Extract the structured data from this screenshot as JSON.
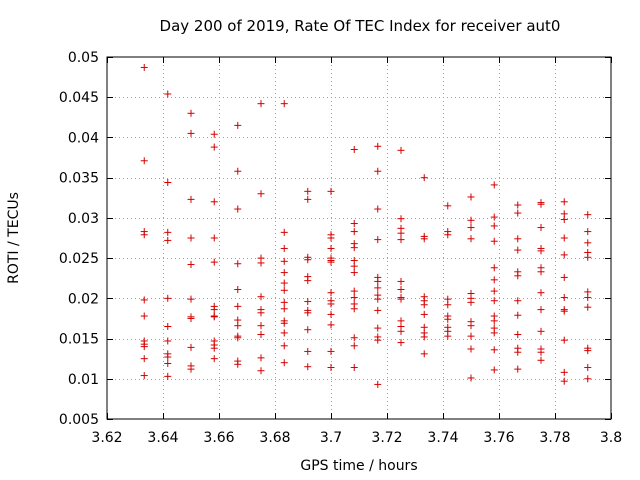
{
  "chart_data": {
    "type": "scatter",
    "title": "Day 200 of 2019, Rate Of TEC Index for receiver aut0",
    "xlabel": "GPS time / hours",
    "ylabel": "ROTI / TECUs",
    "xlim": [
      3.62,
      3.8
    ],
    "ylim": [
      0.005,
      0.05
    ],
    "xticks": [
      3.62,
      3.64,
      3.66,
      3.68,
      3.7,
      3.72,
      3.74,
      3.76,
      3.78,
      3.8
    ],
    "xtick_labels": [
      "3.62",
      "3.64",
      "3.66",
      "3.68",
      "3.7",
      "3.72",
      "3.74",
      "3.76",
      "3.78",
      "3.8"
    ],
    "yticks": [
      0.005,
      0.01,
      0.015,
      0.02,
      0.025,
      0.03,
      0.035,
      0.04,
      0.045,
      0.05
    ],
    "ytick_labels": [
      "0.005",
      "0.01",
      "0.015",
      "0.02",
      "0.025",
      "0.03",
      "0.035",
      "0.04",
      "0.045",
      "0.05"
    ],
    "grid": true,
    "marker": "+",
    "color": "#d40000",
    "series": [
      {
        "x": 3.6333,
        "y": [
          0.0487,
          0.0371,
          0.0283,
          0.0279,
          0.0198,
          0.0178,
          0.0147,
          0.0143,
          0.014,
          0.0125,
          0.0104
        ]
      },
      {
        "x": 3.6417,
        "y": [
          0.0454,
          0.0344,
          0.0282,
          0.0272,
          0.02,
          0.0165,
          0.0147,
          0.0131,
          0.0127,
          0.0119,
          0.0103
        ]
      },
      {
        "x": 3.65,
        "y": [
          0.043,
          0.0405,
          0.0323,
          0.0275,
          0.0242,
          0.0199,
          0.0177,
          0.0175,
          0.0139,
          0.0116,
          0.0112
        ]
      },
      {
        "x": 3.6583,
        "y": [
          0.0404,
          0.0388,
          0.032,
          0.0275,
          0.0245,
          0.019,
          0.0186,
          0.0178,
          0.0177,
          0.0147,
          0.0142,
          0.0138,
          0.0125
        ]
      },
      {
        "x": 3.6667,
        "y": [
          0.0415,
          0.0358,
          0.0311,
          0.0243,
          0.0211,
          0.019,
          0.0173,
          0.0166,
          0.0153,
          0.0151,
          0.0122,
          0.0118
        ]
      },
      {
        "x": 3.675,
        "y": [
          0.0442,
          0.033,
          0.025,
          0.0244,
          0.0202,
          0.0186,
          0.0182,
          0.0166,
          0.0155,
          0.0126,
          0.011
        ]
      },
      {
        "x": 3.6833,
        "y": [
          0.0442,
          0.0282,
          0.0262,
          0.0246,
          0.0232,
          0.0219,
          0.021,
          0.0195,
          0.0187,
          0.0172,
          0.0169,
          0.0157,
          0.0141,
          0.012
        ]
      },
      {
        "x": 3.6917,
        "y": [
          0.0333,
          0.0323,
          0.0251,
          0.0248,
          0.0227,
          0.0222,
          0.0196,
          0.0185,
          0.0182,
          0.0161,
          0.0134,
          0.0115
        ]
      },
      {
        "x": 3.7,
        "y": [
          0.0333,
          0.0279,
          0.0275,
          0.0262,
          0.025,
          0.0247,
          0.0245,
          0.0207,
          0.0197,
          0.0193,
          0.018,
          0.0167,
          0.0134,
          0.0114
        ]
      },
      {
        "x": 3.7083,
        "y": [
          0.0385,
          0.0293,
          0.0283,
          0.0268,
          0.0263,
          0.0247,
          0.024,
          0.0232,
          0.0209,
          0.0201,
          0.0193,
          0.0187,
          0.0151,
          0.0141,
          0.0114
        ]
      },
      {
        "x": 3.7167,
        "y": [
          0.0389,
          0.0358,
          0.0311,
          0.0273,
          0.0226,
          0.0221,
          0.0213,
          0.0204,
          0.0199,
          0.0185,
          0.0163,
          0.0152,
          0.0148,
          0.0093
        ]
      },
      {
        "x": 3.725,
        "y": [
          0.0384,
          0.0299,
          0.0287,
          0.0281,
          0.0273,
          0.0221,
          0.0211,
          0.0201,
          0.0199,
          0.0172,
          0.0165,
          0.0159,
          0.0145
        ]
      },
      {
        "x": 3.7333,
        "y": [
          0.035,
          0.0277,
          0.0274,
          0.0202,
          0.0197,
          0.0192,
          0.018,
          0.0164,
          0.0157,
          0.0152,
          0.0131
        ]
      },
      {
        "x": 3.7417,
        "y": [
          0.0315,
          0.0283,
          0.0279,
          0.0199,
          0.0192,
          0.0178,
          0.0174,
          0.0164,
          0.0159,
          0.0153
        ]
      },
      {
        "x": 3.75,
        "y": [
          0.0326,
          0.0297,
          0.0288,
          0.0274,
          0.0206,
          0.02,
          0.0195,
          0.0171,
          0.0166,
          0.0153,
          0.0137,
          0.0101
        ]
      },
      {
        "x": 3.7583,
        "y": [
          0.0341,
          0.0301,
          0.029,
          0.0271,
          0.0238,
          0.0223,
          0.0209,
          0.0197,
          0.0178,
          0.0172,
          0.0163,
          0.0157,
          0.0136,
          0.0111
        ]
      },
      {
        "x": 3.7667,
        "y": [
          0.0316,
          0.0306,
          0.0274,
          0.026,
          0.0233,
          0.0228,
          0.0197,
          0.0179,
          0.0155,
          0.0138,
          0.0133,
          0.0112
        ]
      },
      {
        "x": 3.775,
        "y": [
          0.0319,
          0.0317,
          0.0288,
          0.0262,
          0.0259,
          0.0238,
          0.0233,
          0.0207,
          0.0186,
          0.0159,
          0.0137,
          0.0133,
          0.0123
        ]
      },
      {
        "x": 3.7833,
        "y": [
          0.032,
          0.0305,
          0.0298,
          0.0275,
          0.0254,
          0.0226,
          0.0201,
          0.0186,
          0.0184,
          0.0148,
          0.0108,
          0.0097
        ]
      },
      {
        "x": 3.7917,
        "y": [
          0.0304,
          0.0283,
          0.0269,
          0.0257,
          0.0251,
          0.0208,
          0.0201,
          0.0189,
          0.0138,
          0.0135,
          0.0114,
          0.01
        ]
      }
    ]
  }
}
